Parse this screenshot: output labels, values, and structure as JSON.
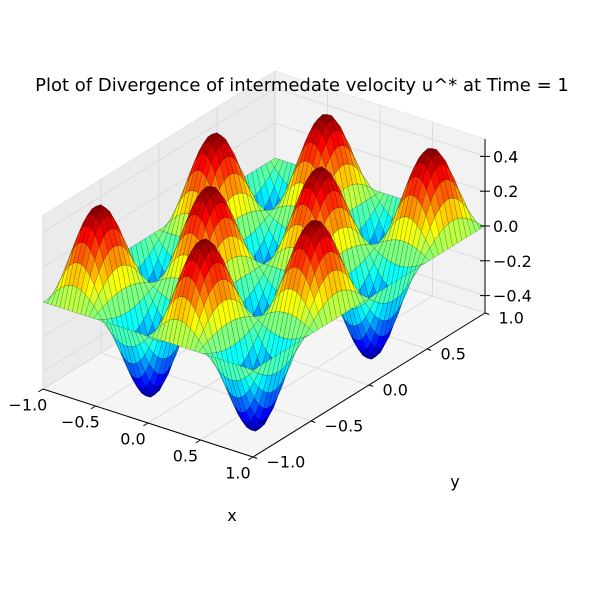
{
  "chart_data": {
    "type": "surface3d",
    "title": "Plot of Divergence of intermedate velocity u^* at Time = 1",
    "xlabel": "x",
    "ylabel": "y",
    "zlabel": "",
    "xlim": [
      -1.0,
      1.0
    ],
    "ylim": [
      -1.0,
      1.0
    ],
    "zlim": [
      -0.5,
      0.5
    ],
    "x_ticks": [
      "−1.0",
      "−0.5",
      "0.0",
      "0.5",
      "1.0"
    ],
    "y_ticks": [
      "−1.0",
      "−0.5",
      "0.0",
      "0.5",
      "1.0"
    ],
    "z_ticks": [
      "−0.4",
      "−0.2",
      "0.0",
      "0.2",
      "0.4"
    ],
    "x_tick_values": [
      -1.0,
      -0.5,
      0.0,
      0.5,
      1.0
    ],
    "y_tick_values": [
      -1.0,
      -0.5,
      0.0,
      0.5,
      1.0
    ],
    "z_tick_values": [
      -0.4,
      -0.2,
      0.0,
      0.2,
      0.4
    ],
    "surface": {
      "function": "z = 0.5 * sin(2*pi*x) * sin(2*pi*y)",
      "x_range": [
        -1.0,
        1.0
      ],
      "y_range": [
        -1.0,
        1.0
      ],
      "grid": 50,
      "colormap": "jet",
      "edgecolor": "#000000"
    },
    "grid": true,
    "pane_color": "#f2f2f2"
  }
}
